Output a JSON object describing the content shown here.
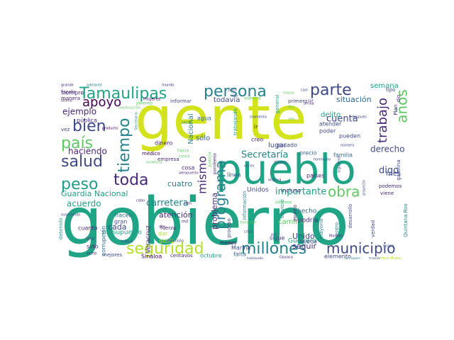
{
  "palette": {
    "yellow": "#d2e21b",
    "lime": "#b5de2b",
    "green": "#5ec962",
    "teal_green": "#35b779",
    "sea": "#20a486",
    "teal": "#1f9e89",
    "cyan": "#26828e",
    "blue": "#31688e",
    "indigo": "#3e4989",
    "violet": "#482878",
    "purple": "#440154"
  },
  "words": [
    {
      "text": "gobierno",
      "size": 92,
      "color": "sea",
      "rot": 0
    },
    {
      "text": "gente",
      "size": 84,
      "color": "yellow",
      "rot": 0
    },
    {
      "text": "pueblo",
      "size": 58,
      "color": "sea",
      "rot": 0
    },
    {
      "text": "Tamaulipas",
      "size": 22,
      "color": "sea",
      "rot": 0
    },
    {
      "text": "persona",
      "size": 22,
      "color": "cyan",
      "rot": 0
    },
    {
      "text": "parte",
      "size": 22,
      "color": "indigo",
      "rot": 0
    },
    {
      "text": "bien",
      "size": 22,
      "color": "indigo",
      "rot": 0
    },
    {
      "text": "apoyo",
      "size": 18,
      "color": "purple",
      "rot": 0
    },
    {
      "text": "país",
      "size": 22,
      "color": "green",
      "rot": 0
    },
    {
      "text": "salud",
      "size": 22,
      "color": "indigo",
      "rot": 0
    },
    {
      "text": "peso",
      "size": 22,
      "color": "teal",
      "rot": 0
    },
    {
      "text": "toda",
      "size": 22,
      "color": "violet",
      "rot": 0
    },
    {
      "text": "tiempo",
      "size": 22,
      "color": "cyan",
      "rot": -90
    },
    {
      "text": "seguridad",
      "size": 22,
      "color": "lime",
      "rot": 0
    },
    {
      "text": "millones",
      "size": 22,
      "color": "cyan",
      "rot": 0
    },
    {
      "text": "municipio",
      "size": 20,
      "color": "indigo",
      "rot": 0
    },
    {
      "text": "programa",
      "size": 20,
      "color": "cyan",
      "rot": -90
    },
    {
      "text": "obra",
      "size": 20,
      "color": "green",
      "rot": 0
    },
    {
      "text": "trabajo",
      "size": 18,
      "color": "violet",
      "rot": -90
    },
    {
      "text": "años",
      "size": 20,
      "color": "green",
      "rot": -90
    },
    {
      "text": "mismo",
      "size": 16,
      "color": "violet",
      "rot": -90
    },
    {
      "text": "Secretaría",
      "size": 13,
      "color": "cyan",
      "rot": 0
    },
    {
      "text": "importante",
      "size": 13,
      "color": "teal",
      "rot": 0
    },
    {
      "text": "carretera",
      "size": 13,
      "color": "cyan",
      "rot": 0
    },
    {
      "text": "Guardia Nacional",
      "size": 11,
      "color": "teal",
      "rot": 0
    },
    {
      "text": "haciendo",
      "size": 12,
      "color": "violet",
      "rot": 0
    },
    {
      "text": "ejemplo",
      "size": 12,
      "color": "violet",
      "rot": 0
    },
    {
      "text": "situación",
      "size": 11,
      "color": "blue",
      "rot": 0
    },
    {
      "text": "cuenta",
      "size": 13,
      "color": "indigo",
      "rot": 0
    },
    {
      "text": "derecho",
      "size": 12,
      "color": "indigo",
      "rot": 0
    },
    {
      "text": "digo",
      "size": 13,
      "color": "indigo",
      "rot": 0
    },
    {
      "text": "semana",
      "size": 10,
      "color": "teal",
      "rot": 0
    },
    {
      "text": "mes",
      "size": 10,
      "color": "indigo",
      "rot": 0
    },
    {
      "text": "acuerdo",
      "size": 12,
      "color": "sea",
      "rot": 0
    },
    {
      "text": "cada",
      "size": 11,
      "color": "indigo",
      "rot": 0
    },
    {
      "text": "atención",
      "size": 11,
      "color": "violet",
      "rot": 0
    },
    {
      "text": "problema",
      "size": 11,
      "color": "violet",
      "rot": -90
    },
    {
      "text": "cuatro",
      "size": 11,
      "color": "cyan",
      "rot": 0
    },
    {
      "text": "Unido",
      "size": 11,
      "color": "indigo",
      "rot": 0
    },
    {
      "text": "seguir",
      "size": 11,
      "color": "violet",
      "rot": 0
    },
    {
      "text": "delito",
      "size": 10,
      "color": "teal",
      "rot": 0
    },
    {
      "text": "sólo",
      "size": 10,
      "color": "blue",
      "rot": 0
    },
    {
      "text": "lugar",
      "size": 10,
      "color": "indigo",
      "rot": 0
    },
    {
      "text": "Nacional",
      "size": 10,
      "color": "cyan",
      "rot": -90
    },
    {
      "text": "todavía",
      "size": 10,
      "color": "indigo",
      "rot": 0
    },
    {
      "text": "camino",
      "size": 10,
      "color": "green",
      "rot": 0
    },
    {
      "text": "hecho",
      "size": 9,
      "color": "blue",
      "rot": 0
    },
    {
      "text": "podría",
      "size": 9,
      "color": "violet",
      "rot": 0
    },
    {
      "text": "Unidos",
      "size": 9,
      "color": "indigo",
      "rot": 0
    },
    {
      "text": "presupuesto",
      "size": 9,
      "color": "teal",
      "rot": 0
    },
    {
      "text": "Veracruz",
      "size": 9,
      "color": "violet",
      "rot": -90
    },
    {
      "text": "Guerrero",
      "size": 9,
      "color": "teal",
      "rot": 0
    },
    {
      "text": "elemento",
      "size": 8,
      "color": "indigo",
      "rot": 0
    },
    {
      "text": "muchas",
      "size": 8,
      "color": "lime",
      "rot": 0
    },
    {
      "text": "Sinaloa",
      "size": 8,
      "color": "purple",
      "rot": 0
    },
    {
      "text": "Marina",
      "size": 8,
      "color": "indigo",
      "rot": 0
    },
    {
      "text": "falta",
      "size": 8,
      "color": "blue",
      "rot": 0
    },
    {
      "text": "menos",
      "size": 7,
      "color": "purple",
      "rot": 0
    },
    {
      "text": "corrupción",
      "size": 8,
      "color": "blue",
      "rot": -90
    },
    {
      "text": "hacen",
      "size": 8,
      "color": "blue",
      "rot": 0
    },
    {
      "text": "gran",
      "size": 8,
      "color": "indigo",
      "rot": 0
    },
    {
      "text": "cuanto",
      "size": 8,
      "color": "violet",
      "rot": 0
    },
    {
      "text": "sido",
      "size": 8,
      "color": "violet",
      "rot": 0
    },
    {
      "text": "mejores",
      "size": 7,
      "color": "indigo",
      "rot": 0
    },
    {
      "text": "octubre",
      "size": 8,
      "color": "teal",
      "rot": 0
    },
    {
      "text": "centavos",
      "size": 7,
      "color": "violet",
      "rot": 0
    },
    {
      "text": "dinero",
      "size": 8,
      "color": "violet",
      "rot": 0
    },
    {
      "text": "agua",
      "size": 8,
      "color": "blue",
      "rot": 0
    },
    {
      "text": "dar",
      "size": 8,
      "color": "lime",
      "rot": 0
    },
    {
      "text": "gusto",
      "size": 8,
      "color": "lime",
      "rot": 0
    },
    {
      "text": "médico",
      "size": 7,
      "color": "purple",
      "rot": 0
    },
    {
      "text": "empresa",
      "size": 7,
      "color": "violet",
      "rot": 0
    },
    {
      "text": "cosa",
      "size": 8,
      "color": "violet",
      "rot": 0
    },
    {
      "text": "línea",
      "size": 8,
      "color": "indigo",
      "rot": 0
    },
    {
      "text": "pasado",
      "size": 8,
      "color": "indigo",
      "rot": 0
    },
    {
      "text": "sigue",
      "size": 8,
      "color": "indigo",
      "rot": 0
    },
    {
      "text": "buena",
      "size": 8,
      "color": "indigo",
      "rot": 0
    },
    {
      "text": "creo",
      "size": 8,
      "color": "violet",
      "rot": 0
    },
    {
      "text": "ir",
      "size": 8,
      "color": "violet",
      "rot": 0
    },
    {
      "text": "incluso",
      "size": 8,
      "color": "violet",
      "rot": 0
    },
    {
      "text": "precio",
      "size": 8,
      "color": "blue",
      "rot": 0
    },
    {
      "text": "familia",
      "size": 8,
      "color": "blue",
      "rot": 0
    },
    {
      "text": "pueden",
      "size": 8,
      "color": "indigo",
      "rot": 0
    },
    {
      "text": "atender",
      "size": 8,
      "color": "indigo",
      "rot": 0
    },
    {
      "text": "poder",
      "size": 8,
      "color": "indigo",
      "rot": 0
    },
    {
      "text": "países",
      "size": 8,
      "color": "violet",
      "rot": 0
    },
    {
      "text": "pública",
      "size": 8,
      "color": "violet",
      "rot": 0
    },
    {
      "text": "siempre",
      "size": 8,
      "color": "violet",
      "rot": 0
    },
    {
      "text": "informar",
      "size": 7,
      "color": "indigo",
      "rot": 0
    },
    {
      "text": "mujeres",
      "size": 6,
      "color": "purple",
      "rot": 0
    },
    {
      "text": "manera",
      "size": 7,
      "color": "violet",
      "rot": 0
    },
    {
      "text": "vez",
      "size": 7,
      "color": "indigo",
      "rot": 0
    },
    {
      "text": "primero",
      "size": 7,
      "color": "indigo",
      "rot": 0
    },
    {
      "text": "podemos",
      "size": 7,
      "color": "violet",
      "rot": 0
    },
    {
      "text": "viene",
      "size": 7,
      "color": "violet",
      "rot": 0
    },
    {
      "text": "verdad",
      "size": 7,
      "color": "indigo",
      "rot": -90
    },
    {
      "text": "Quintana Roo",
      "size": 7,
      "color": "cyan",
      "rot": -90
    },
    {
      "text": "desarrollo",
      "size": 7,
      "color": "indigo",
      "rot": -90
    },
    {
      "text": "centro",
      "size": 7,
      "color": "cyan",
      "rot": -90
    },
    {
      "text": "gasolina",
      "size": 7,
      "color": "indigo",
      "rot": -90
    },
    {
      "text": "mayoría",
      "size": 7,
      "color": "cyan",
      "rot": -90
    },
    {
      "text": "servicio",
      "size": 7,
      "color": "cyan",
      "rot": -90
    },
    {
      "text": "asunto",
      "size": 7,
      "color": "violet",
      "rot": -90
    },
    {
      "text": "información",
      "size": 7,
      "color": "cyan",
      "rot": -90
    },
    {
      "text": "proceso",
      "size": 7,
      "color": "indigo",
      "rot": -90
    },
    {
      "text": "trabajando",
      "size": 7,
      "color": "teal",
      "rot": -90
    },
    {
      "text": "detenido",
      "size": 7,
      "color": "teal",
      "rot": -90
    },
    {
      "text": "tipo",
      "size": 7,
      "color": "indigo",
      "rot": 0
    },
    {
      "text": "Plan",
      "size": 7,
      "color": "violet",
      "rot": -90
    },
    {
      "text": "dio",
      "size": 7,
      "color": "violet",
      "rot": -90
    },
    {
      "text": "hacia",
      "size": 6,
      "color": "green",
      "rot": 0
    },
    {
      "text": "cinco",
      "size": 6,
      "color": "green",
      "rot": 0
    },
    {
      "text": "justicia",
      "size": 6,
      "color": "green",
      "rot": -90
    },
    {
      "text": "pandemia",
      "size": 6,
      "color": "violet",
      "rot": -90
    },
    {
      "text": "informe",
      "size": 6,
      "color": "green",
      "rot": 0
    },
    {
      "text": "sistema",
      "size": 6,
      "color": "green",
      "rot": 0
    },
    {
      "text": "jóvenes",
      "size": 6,
      "color": "green",
      "rot": 0
    },
    {
      "text": "fuerza",
      "size": 7,
      "color": "violet",
      "rot": 0
    },
    {
      "text": "mil",
      "size": 6,
      "color": "violet",
      "rot": 0
    },
    {
      "text": "general",
      "size": 7,
      "color": "sea",
      "rot": -90
    },
    {
      "text": "después",
      "size": 5,
      "color": "indigo",
      "rot": 0
    },
    {
      "text": "Morelos",
      "size": 5,
      "color": "violet",
      "rot": 0
    },
    {
      "text": "crisis",
      "size": 5,
      "color": "indigo",
      "rot": 0
    },
    {
      "text": "producto",
      "size": 5,
      "color": "purple",
      "rot": 0
    },
    {
      "text": "avanzando",
      "size": 5,
      "color": "indigo",
      "rot": 0
    },
    {
      "text": "fiscalía",
      "size": 6,
      "color": "violet",
      "rot": 0
    },
    {
      "text": "último",
      "size": 5,
      "color": "violet",
      "rot": 0
    },
    {
      "text": "grande",
      "size": 5,
      "color": "violet",
      "rot": 0
    },
    {
      "text": "adelante",
      "size": 5,
      "color": "cyan",
      "rot": 0
    },
    {
      "text": "mundo",
      "size": 5,
      "color": "violet",
      "rot": 0
    },
    {
      "text": "federal",
      "size": 5,
      "color": "indigo",
      "rot": 0
    },
    {
      "text": "total",
      "size": 5,
      "color": "violet",
      "rot": 0
    },
    {
      "text": "ocho",
      "size": 6,
      "color": "violet",
      "rot": 0
    },
    {
      "text": "hablando",
      "size": 5,
      "color": "indigo",
      "rot": 0
    },
    {
      "text": "Oaxaca",
      "size": 5,
      "color": "violet",
      "rot": 0
    },
    {
      "text": "acciones",
      "size": 5,
      "color": "cyan",
      "rot": 0
    },
    {
      "text": "tramo",
      "size": 5,
      "color": "indigo",
      "rot": 0
    },
    {
      "text": "nunca",
      "size": 5,
      "color": "indigo",
      "rot": 0
    },
    {
      "text": "homicidio",
      "size": 5,
      "color": "indigo",
      "rot": 0
    },
    {
      "text": "víctima",
      "size": 5,
      "color": "violet",
      "rot": 0
    },
    {
      "text": "veces",
      "size": 5,
      "color": "indigo",
      "rot": 0
    },
    {
      "text": "inversión",
      "size": 5,
      "color": "indigo",
      "rot": 0
    },
    {
      "text": "cabo",
      "size": 5,
      "color": "violet",
      "rot": 0
    },
    {
      "text": "aeropuerto",
      "size": 5,
      "color": "violet",
      "rot": 0
    },
    {
      "text": "violencia",
      "size": 5,
      "color": "green",
      "rot": 0
    },
    {
      "text": "bienestar",
      "size": 5,
      "color": "green",
      "rot": 0
    },
    {
      "text": "construcción",
      "size": 5,
      "color": "green",
      "rot": 0
    },
    {
      "text": "dólares",
      "size": 5,
      "color": "indigo",
      "rot": 0
    },
    {
      "text": "número",
      "size": 5,
      "color": "indigo",
      "rot": 0
    },
    {
      "text": "Siguiente",
      "size": 5,
      "color": "indigo",
      "rot": -90
    },
    {
      "text": "proyecto",
      "size": 5,
      "color": "indigo",
      "rot": -90
    },
    {
      "text": "mayor",
      "size": 5,
      "color": "green",
      "rot": 0
    },
    {
      "text": "casi",
      "size": 5,
      "color": "indigo",
      "rot": 0
    },
    {
      "text": "arriba",
      "size": 5,
      "color": "violet",
      "rot": 0
    },
    {
      "text": "social",
      "size": 5,
      "color": "cyan",
      "rot": 0
    },
    {
      "text": "Secretario",
      "size": 5,
      "color": "cyan",
      "rot": -90
    },
    {
      "text": "poco",
      "size": 5,
      "color": "indigo",
      "rot": 0
    },
    {
      "text": "ley",
      "size": 5,
      "color": "indigo",
      "rot": 0
    },
    {
      "text": "tren",
      "size": 5,
      "color": "violet",
      "rot": 0
    },
    {
      "text": "sur",
      "size": 5,
      "color": "violet",
      "rot": 0
    },
    {
      "text": "dos",
      "size": 5,
      "color": "green",
      "rot": 0
    },
    {
      "text": "momento",
      "size": 5,
      "color": "indigo",
      "rot": 0
    },
    {
      "text": "seis",
      "size": 5,
      "color": "green",
      "rot": 0
    },
    {
      "text": "dije",
      "size": 5,
      "color": "violet",
      "rot": 0
    },
    {
      "text": "paz",
      "size": 5,
      "color": "indigo",
      "rot": 0
    }
  ]
}
